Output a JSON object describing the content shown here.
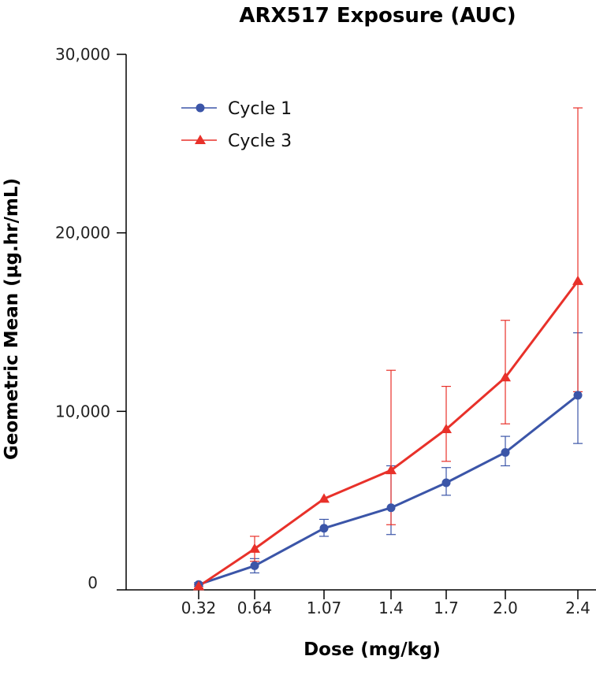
{
  "chart_data": {
    "type": "line",
    "title": "ARX517 Exposure (AUC)",
    "xlabel": "Dose (mg/kg)",
    "ylabel": "Geometric Mean (µg.hr/mL)",
    "categories": [
      "0.32",
      "0.64",
      "1.07",
      "1.4",
      "1.7",
      "2.0",
      "2.4"
    ],
    "ylim": [
      0,
      30000
    ],
    "yticks": [
      0,
      10000,
      20000,
      30000
    ],
    "ytick_labels": [
      "0",
      "10,000",
      "20,000",
      "30,000"
    ],
    "grid": false,
    "legend_position": "top-left",
    "series": [
      {
        "name": "Cycle 1",
        "color": "#3b55a8",
        "marker": "circle",
        "values": [
          300,
          1350,
          3450,
          4600,
          6000,
          7700,
          10900
        ],
        "error_lower": [
          200,
          950,
          3000,
          3100,
          5300,
          6950,
          8200
        ],
        "error_upper": [
          400,
          1750,
          3950,
          6950,
          6850,
          8600,
          14400
        ]
      },
      {
        "name": "Cycle 3",
        "color": "#e8312a",
        "marker": "triangle",
        "values": [
          200,
          2300,
          5100,
          6700,
          9000,
          11900,
          17300
        ],
        "error_lower": [
          100,
          1600,
          5100,
          3650,
          7200,
          9300,
          11100
        ],
        "error_upper": [
          300,
          3000,
          5100,
          12300,
          11400,
          15100,
          27000
        ]
      }
    ]
  }
}
